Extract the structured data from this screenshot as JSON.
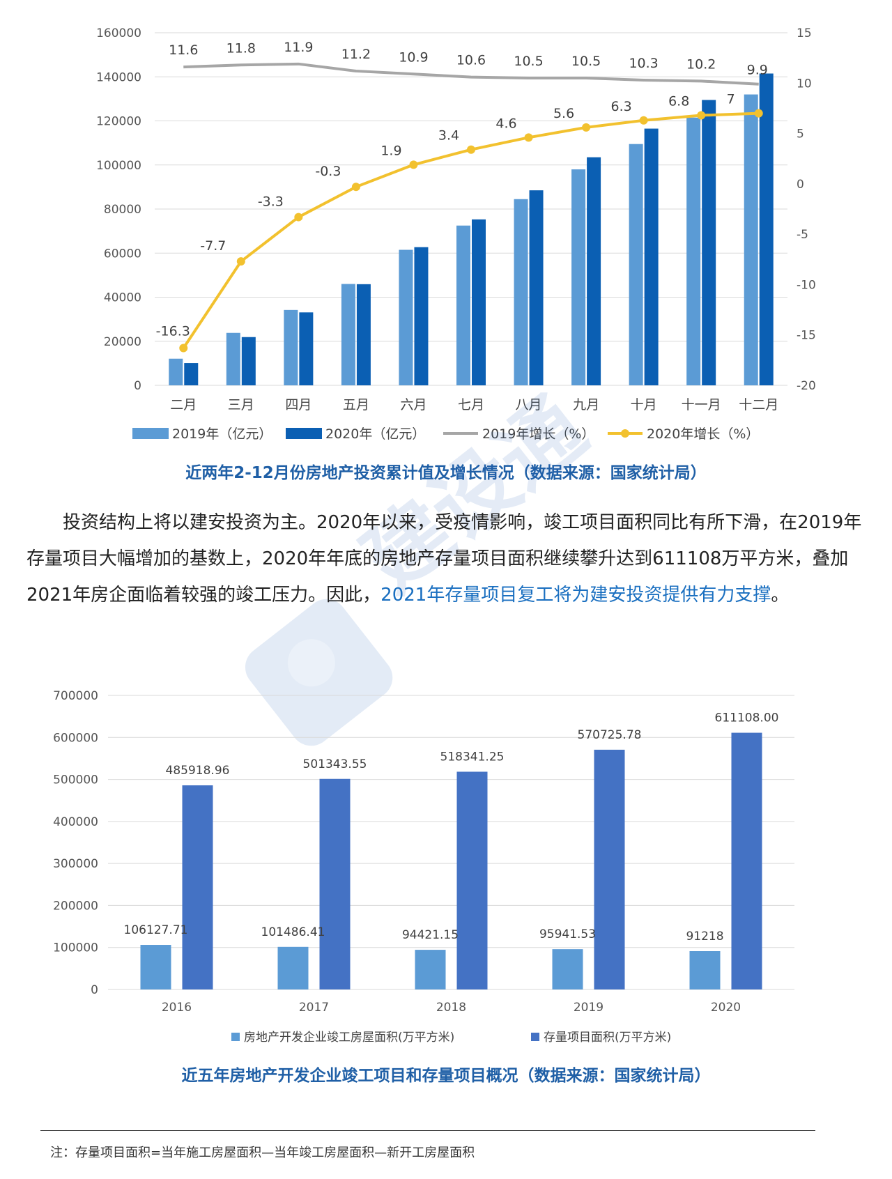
{
  "chart_data": [
    {
      "type": "bar+line",
      "categories": [
        "二月",
        "三月",
        "四月",
        "五月",
        "六月",
        "七月",
        "八月",
        "九月",
        "十月",
        "十一月",
        "十二月"
      ],
      "series": [
        {
          "name": "2019年（亿元）",
          "kind": "bar",
          "axis": "left",
          "color": "#5b9bd5",
          "values": [
            12100,
            23800,
            34200,
            46000,
            61500,
            72500,
            84500,
            98000,
            109500,
            121500,
            132000
          ]
        },
        {
          "name": "2020年（亿元）",
          "kind": "bar",
          "axis": "left",
          "color": "#0b5fb3",
          "values": [
            10100,
            21900,
            33100,
            45900,
            62700,
            75300,
            88500,
            103500,
            116500,
            129500,
            141500
          ]
        },
        {
          "name": "2019年增长（%）",
          "kind": "line",
          "axis": "right",
          "color": "#a6a6a6",
          "values": [
            11.6,
            11.8,
            11.9,
            11.2,
            10.9,
            10.6,
            10.5,
            10.5,
            10.3,
            10.2,
            9.9
          ]
        },
        {
          "name": "2020年增长（%）",
          "kind": "line",
          "axis": "right",
          "color": "#f2c12e",
          "values": [
            -16.3,
            -7.7,
            -3.3,
            -0.3,
            1.9,
            3.4,
            4.6,
            5.6,
            6.3,
            6.8,
            7
          ]
        }
      ],
      "labels_2019": [
        "11.6",
        "11.8",
        "11.9",
        "11.2",
        "10.9",
        "10.6",
        "10.5",
        "10.5",
        "10.3",
        "10.2",
        "9.9"
      ],
      "labels_2020": [
        "-16.3",
        "-7.7",
        "-3.3",
        "-0.3",
        "1.9",
        "3.4",
        "4.6",
        "5.6",
        "6.3",
        "6.8",
        "7"
      ],
      "y_left": {
        "min": 0,
        "max": 160000,
        "ticks": [
          "0",
          "20000",
          "40000",
          "60000",
          "80000",
          "100000",
          "120000",
          "140000",
          "160000"
        ]
      },
      "y_right": {
        "min": -20,
        "max": 15,
        "ticks": [
          "-20",
          "-15",
          "-10",
          "-5",
          "0",
          "5",
          "10",
          "15"
        ]
      },
      "grid": true,
      "legend": "bottom",
      "title": "近两年2-12月份房地产投资累计值及增长情况（数据来源：国家统计局）"
    },
    {
      "type": "bar",
      "categories": [
        "2016",
        "2017",
        "2018",
        "2019",
        "2020"
      ],
      "series": [
        {
          "name": "房地产开发企业竣工房屋面积(万平方米)",
          "color": "#5b9bd5",
          "values": [
            106127.71,
            101486.41,
            94421.15,
            95941.53,
            91218
          ],
          "labels": [
            "106127.71",
            "101486.41",
            "94421.15",
            "95941.53",
            "91218"
          ]
        },
        {
          "name": "存量项目面积(万平方米)",
          "color": "#4472c4",
          "values": [
            485918.96,
            501343.55,
            518341.25,
            570725.78,
            611108.0
          ],
          "labels": [
            "485918.96",
            "501343.55",
            "518341.25",
            "570725.78",
            "611108.00"
          ]
        }
      ],
      "y": {
        "min": 0,
        "max": 700000,
        "ticks": [
          "0",
          "100000",
          "200000",
          "300000",
          "400000",
          "500000",
          "600000",
          "700000"
        ]
      },
      "grid": true,
      "legend": "bottom",
      "title": "近五年房地产开发企业竣工项目和存量项目概况（数据来源：国家统计局）"
    }
  ],
  "paragraph": {
    "text": "投资结构上将以建安投资为主。2020年以来，受疫情影响，竣工项目面积同比有所下滑，在2019年存量项目大幅增加的基数上，2020年年底的房地产存量项目面积继续攀升达到611108万平方米，叠加2021年房企面临着较强的竣工压力。因此，",
    "highlight": "2021年存量项目复工将为建安投资提供有力支撑",
    "end": "。"
  },
  "watermark": "建设通",
  "footnote": "注：存量项目面积=当年施工房屋面积—当年竣工房屋面积—新开工房屋面积"
}
